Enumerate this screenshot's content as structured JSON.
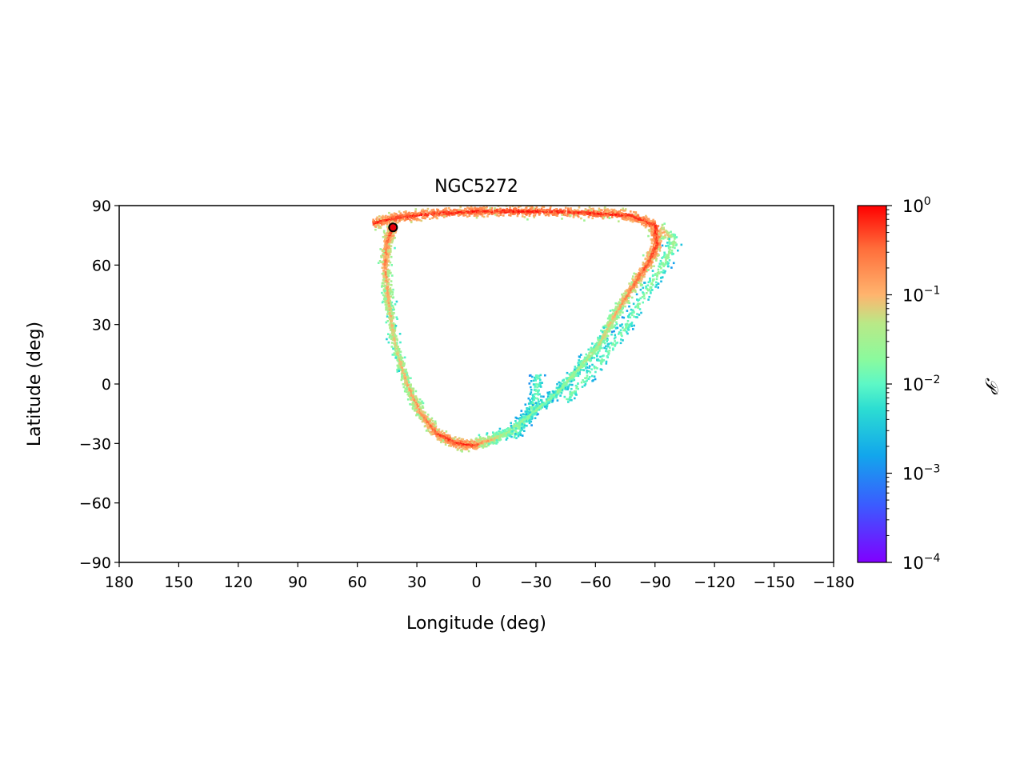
{
  "chart_data": {
    "type": "scatter",
    "title": "NGC5272",
    "xlabel": "Longitude (deg)",
    "ylabel": "Latitude (deg)",
    "xlim": [
      180,
      -180
    ],
    "ylim": [
      -90,
      90
    ],
    "xticks": [
      180,
      150,
      120,
      90,
      60,
      30,
      0,
      -30,
      -60,
      -90,
      -120,
      -150,
      -180
    ],
    "xtick_labels": [
      "180",
      "150",
      "120",
      "90",
      "60",
      "30",
      "0",
      "−30",
      "−60",
      "−90",
      "−120",
      "−150",
      "−180"
    ],
    "yticks": [
      90,
      60,
      30,
      0,
      -30,
      -60,
      -90
    ],
    "ytick_labels": [
      "90",
      "60",
      "30",
      "0",
      "−30",
      "−60",
      "−90"
    ],
    "grid": false,
    "cluster_position": {
      "lon": 42,
      "lat": 79
    },
    "stream_path": [
      {
        "lon": 52,
        "lat": 81,
        "p": 0.8
      },
      {
        "lon": 40,
        "lat": 84,
        "p": 0.9
      },
      {
        "lon": 20,
        "lat": 86,
        "p": 0.9
      },
      {
        "lon": 0,
        "lat": 87,
        "p": 0.9
      },
      {
        "lon": -20,
        "lat": 87,
        "p": 0.9
      },
      {
        "lon": -40,
        "lat": 87,
        "p": 0.9
      },
      {
        "lon": -60,
        "lat": 86,
        "p": 0.9
      },
      {
        "lon": -78,
        "lat": 85,
        "p": 0.9
      },
      {
        "lon": -90,
        "lat": 80,
        "p": 0.9
      },
      {
        "lon": -91,
        "lat": 70,
        "p": 0.8
      },
      {
        "lon": -86,
        "lat": 60,
        "p": 0.6
      },
      {
        "lon": -78,
        "lat": 48,
        "p": 0.4
      },
      {
        "lon": -70,
        "lat": 35,
        "p": 0.15
      },
      {
        "lon": -62,
        "lat": 20,
        "p": 0.08
      },
      {
        "lon": -52,
        "lat": 8,
        "p": 0.05
      },
      {
        "lon": -40,
        "lat": -5,
        "p": 0.03
      },
      {
        "lon": -28,
        "lat": -15,
        "p": 0.03
      },
      {
        "lon": -15,
        "lat": -25,
        "p": 0.05
      },
      {
        "lon": -5,
        "lat": -29,
        "p": 0.2
      },
      {
        "lon": 2,
        "lat": -31,
        "p": 0.8
      },
      {
        "lon": 10,
        "lat": -30,
        "p": 0.8
      },
      {
        "lon": 20,
        "lat": -25,
        "p": 0.6
      },
      {
        "lon": 28,
        "lat": -15,
        "p": 0.3
      },
      {
        "lon": 35,
        "lat": 0,
        "p": 0.15
      },
      {
        "lon": 41,
        "lat": 20,
        "p": 0.1
      },
      {
        "lon": 44,
        "lat": 40,
        "p": 0.15
      },
      {
        "lon": 46,
        "lat": 60,
        "p": 0.3
      },
      {
        "lon": 45,
        "lat": 72,
        "p": 0.4
      },
      {
        "lon": 42,
        "lat": 79,
        "p": 0.9
      }
    ],
    "side_branches": [
      [
        {
          "lon": -18,
          "lat": -26,
          "p": 0.03
        },
        {
          "lon": -25,
          "lat": -18,
          "p": 0.02
        },
        {
          "lon": -30,
          "lat": -8,
          "p": 0.02
        },
        {
          "lon": -31,
          "lat": 5,
          "p": 0.015
        }
      ],
      [
        {
          "lon": -92,
          "lat": 78,
          "p": 0.3
        },
        {
          "lon": -100,
          "lat": 72,
          "p": 0.04
        },
        {
          "lon": -94,
          "lat": 60,
          "p": 0.03
        },
        {
          "lon": -85,
          "lat": 45,
          "p": 0.025
        },
        {
          "lon": -75,
          "lat": 28,
          "p": 0.02
        },
        {
          "lon": -62,
          "lat": 10,
          "p": 0.02
        },
        {
          "lon": -45,
          "lat": -8,
          "p": 0.02
        }
      ]
    ],
    "colorbar": {
      "label": "𝒫",
      "scale": "log",
      "range": [
        0.0001,
        1
      ],
      "colormap": "rainbow",
      "ticks": [
        {
          "base": "10",
          "exp": "0",
          "value": 1
        },
        {
          "base": "10",
          "exp": "−1",
          "value": 0.1
        },
        {
          "base": "10",
          "exp": "−2",
          "value": 0.01
        },
        {
          "base": "10",
          "exp": "−3",
          "value": 0.001
        },
        {
          "base": "10",
          "exp": "−4",
          "value": 0.0001
        }
      ]
    }
  }
}
